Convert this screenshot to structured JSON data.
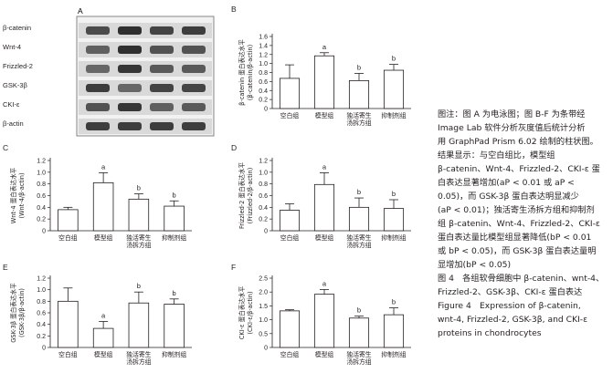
{
  "figure": {
    "blot": {
      "panel_letter": "A",
      "rows": [
        "β-catenin",
        "Wnt-4",
        "Frizzled-2",
        "GSK-3β",
        "CKI-ε",
        "β-actin"
      ]
    },
    "caption_lines": [
      "图注：图 A 为电泳图；图 B-F 为条带经",
      "Image Lab 软件分析灰度值后统计分析",
      "用 GraphPad Prism 6.02 绘制的柱状图。",
      "结果显示：与空白组比，模型组",
      "β-catenin、Wnt-4、Frizzled-2、CKI-ε 蛋",
      "白表达显著增加(aP < 0.01 或 aP <",
      "0.05)，而 GSK-3β 蛋白表达明显减少",
      "(aP < 0.01)；独活寄生汤拆方组和抑制剂",
      "组 β-catenin、Wnt-4、Frizzled-2、CKI-ε",
      "蛋白表达量比模型组显著降低(bP < 0.01",
      "或 bP < 0.05)，而 GSK-3β 蛋白表达量明",
      "显增加(bP < 0.05)",
      "图 4　各组软骨细胞中 β-catenin、wnt-4、",
      "Frizzled-2、GSK-3β、CKI-ε 蛋白表达",
      "Figure 4　Expression of β-catenin,",
      "wnt-4, Frizzled-2, GSK-3β, and CKI-ε",
      "proteins in chondrocytes"
    ]
  },
  "chart_data": [
    {
      "panel": "B",
      "type": "bar",
      "categories": [
        "空白组",
        "模型组",
        "独活寄生\n汤拆方组",
        "抑制剂组"
      ],
      "values": [
        0.67,
        1.17,
        0.62,
        0.85
      ],
      "errors": [
        0.3,
        0.07,
        0.16,
        0.13
      ],
      "marks": [
        "",
        "a",
        "b",
        "b"
      ],
      "ylabel": "β-catenin 蛋白表达水平\n(β-catenin/β-actin)",
      "ylim": [
        0,
        1.6
      ],
      "yticks": [
        "0",
        "0.2",
        "0.4",
        "0.6",
        "0.8",
        "1.0",
        "1.2",
        "1.4",
        "1.6"
      ]
    },
    {
      "panel": "C",
      "type": "bar",
      "categories": [
        "空白组",
        "模型组",
        "独活寄生\n汤拆方组",
        "抑制剂组"
      ],
      "values": [
        0.36,
        0.82,
        0.54,
        0.42
      ],
      "errors": [
        0.04,
        0.17,
        0.09,
        0.09
      ],
      "marks": [
        "",
        "a",
        "b",
        "b"
      ],
      "ylabel": "Wnt-4 蛋白表达水平\n(Wnt-4/β-actin)",
      "ylim": [
        0,
        1.2
      ],
      "yticks": [
        "0",
        "0.2",
        "0.4",
        "0.6",
        "0.8",
        "1.0",
        "1.2"
      ]
    },
    {
      "panel": "D",
      "type": "bar",
      "categories": [
        "空白组",
        "模型组",
        "独活寄生\n汤拆方组",
        "抑制剂组"
      ],
      "values": [
        0.35,
        0.79,
        0.4,
        0.38
      ],
      "errors": [
        0.11,
        0.2,
        0.16,
        0.15
      ],
      "marks": [
        "",
        "a",
        "b",
        "b"
      ],
      "ylabel": "Frizzled-2 蛋白表达水平\n(Frizzled-2/β-actin)",
      "ylim": [
        0,
        1.2
      ],
      "yticks": [
        "0",
        "0.2",
        "0.4",
        "0.6",
        "0.8",
        "1.0",
        "1.2"
      ]
    },
    {
      "panel": "E",
      "type": "bar",
      "categories": [
        "空白组",
        "模型组",
        "独活寄生\n汤拆方组",
        "抑制剂组"
      ],
      "values": [
        0.8,
        0.33,
        0.77,
        0.75
      ],
      "errors": [
        0.23,
        0.12,
        0.19,
        0.09
      ],
      "marks": [
        "",
        "a",
        "b",
        "b"
      ],
      "ylabel": "GSK-3β 蛋白表达水平\n(GSK-3β/β-actin)",
      "ylim": [
        0,
        1.2
      ],
      "yticks": [
        "0",
        "0.2",
        "0.4",
        "0.6",
        "0.8",
        "1.0",
        "1.2"
      ]
    },
    {
      "panel": "F",
      "type": "bar",
      "categories": [
        "空白组",
        "模型组",
        "独活寄生\n汤拆方组",
        "抑制剂组"
      ],
      "values": [
        1.32,
        1.92,
        1.06,
        1.18
      ],
      "errors": [
        0.04,
        0.17,
        0.07,
        0.25
      ],
      "marks": [
        "",
        "a",
        "b",
        "b"
      ],
      "ylabel": "CKI-ε 蛋白表达水平\n(CKI-ε/β-actin)",
      "ylim": [
        0,
        2.5
      ],
      "yticks": [
        "0",
        "0.5",
        "1.0",
        "1.5",
        "2.0",
        "2.5"
      ]
    }
  ]
}
